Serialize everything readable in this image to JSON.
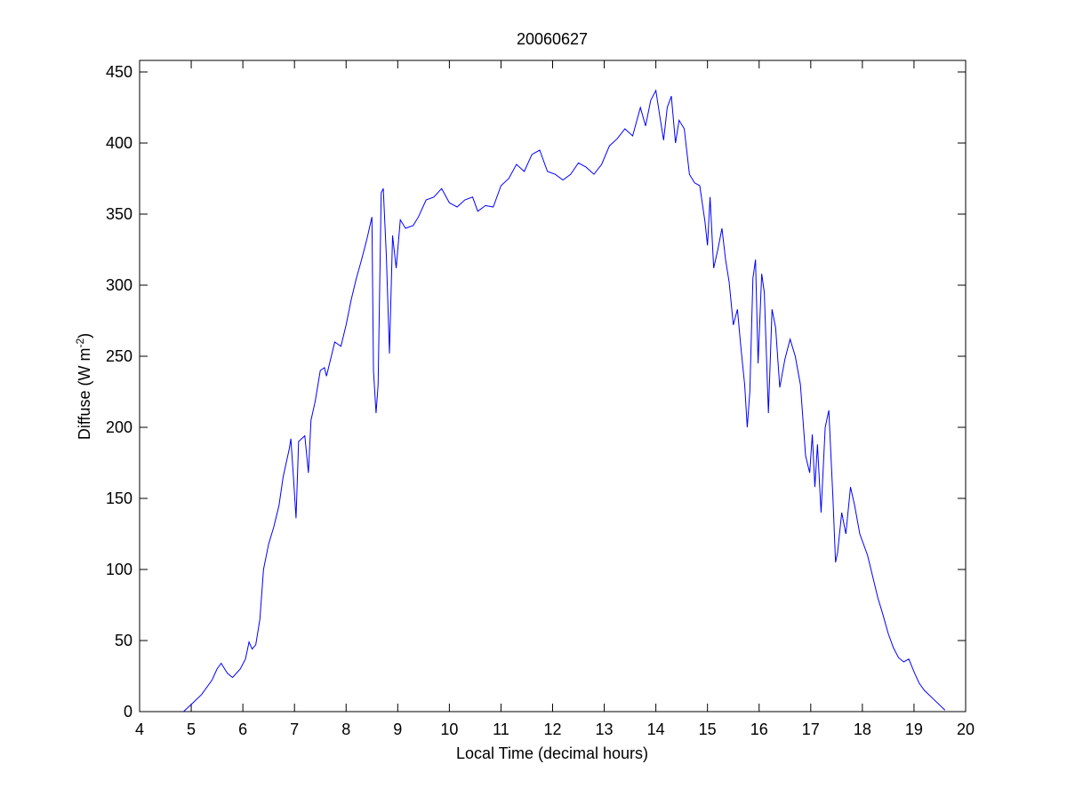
{
  "chart_data": {
    "type": "line",
    "title": "20060627",
    "xlabel": "Local Time (decimal hours)",
    "ylabel": {
      "text": "Diffuse (W m",
      "superscript": "-2",
      "suffix": ")"
    },
    "color": "#0000ff",
    "xlim": [
      4,
      20
    ],
    "xticks": [
      4,
      5,
      6,
      7,
      8,
      9,
      10,
      11,
      12,
      13,
      14,
      15,
      16,
      17,
      18,
      19,
      20
    ],
    "ylim": [
      0,
      450
    ],
    "yticks": [
      0,
      50,
      100,
      150,
      200,
      250,
      300,
      350,
      400,
      450
    ],
    "x": [
      4.85,
      5.0,
      5.2,
      5.4,
      5.5,
      5.58,
      5.7,
      5.8,
      5.95,
      6.05,
      6.12,
      6.18,
      6.25,
      6.33,
      6.4,
      6.5,
      6.6,
      6.7,
      6.78,
      6.9,
      6.93,
      6.98,
      7.03,
      7.08,
      7.2,
      7.27,
      7.32,
      7.4,
      7.5,
      7.58,
      7.62,
      7.7,
      7.78,
      7.9,
      8.0,
      8.1,
      8.2,
      8.3,
      8.4,
      8.5,
      8.53,
      8.58,
      8.62,
      8.68,
      8.72,
      8.78,
      8.84,
      8.9,
      8.97,
      9.05,
      9.15,
      9.3,
      9.4,
      9.55,
      9.7,
      9.85,
      10.0,
      10.15,
      10.3,
      10.45,
      10.55,
      10.7,
      10.85,
      11.0,
      11.15,
      11.3,
      11.45,
      11.6,
      11.75,
      11.9,
      12.05,
      12.2,
      12.35,
      12.5,
      12.65,
      12.8,
      12.95,
      13.1,
      13.25,
      13.4,
      13.55,
      13.7,
      13.8,
      13.9,
      14.0,
      14.08,
      14.15,
      14.22,
      14.3,
      14.38,
      14.45,
      14.55,
      14.65,
      14.75,
      14.85,
      14.95,
      15.0,
      15.05,
      15.12,
      15.2,
      15.28,
      15.35,
      15.42,
      15.5,
      15.58,
      15.65,
      15.72,
      15.77,
      15.82,
      15.88,
      15.93,
      15.98,
      16.05,
      16.1,
      16.18,
      16.25,
      16.32,
      16.4,
      16.5,
      16.6,
      16.7,
      16.8,
      16.9,
      16.98,
      17.03,
      17.08,
      17.13,
      17.2,
      17.28,
      17.35,
      17.43,
      17.48,
      17.52,
      17.6,
      17.68,
      17.77,
      17.85,
      17.95,
      18.1,
      18.2,
      18.3,
      18.4,
      18.5,
      18.6,
      18.7,
      18.8,
      18.9,
      19.0,
      19.1,
      19.2,
      19.4,
      19.6
    ],
    "values": [
      0,
      5,
      12,
      22,
      30,
      34,
      27,
      24,
      30,
      37,
      49,
      44,
      47,
      65,
      100,
      118,
      130,
      145,
      165,
      185,
      192,
      165,
      136,
      190,
      194,
      168,
      205,
      218,
      240,
      242,
      236,
      248,
      260,
      257,
      272,
      290,
      305,
      318,
      332,
      348,
      240,
      210,
      230,
      365,
      368,
      320,
      252,
      335,
      312,
      346,
      340,
      342,
      348,
      360,
      362,
      368,
      358,
      355,
      360,
      362,
      352,
      356,
      355,
      370,
      375,
      385,
      380,
      392,
      395,
      380,
      378,
      374,
      378,
      386,
      383,
      378,
      385,
      398,
      403,
      410,
      405,
      425,
      412,
      430,
      437,
      418,
      402,
      425,
      433,
      400,
      416,
      410,
      378,
      372,
      370,
      345,
      328,
      362,
      312,
      325,
      340,
      318,
      302,
      272,
      283,
      255,
      230,
      200,
      225,
      305,
      318,
      245,
      308,
      295,
      210,
      283,
      270,
      228,
      248,
      262,
      250,
      230,
      180,
      168,
      195,
      158,
      188,
      140,
      200,
      212,
      150,
      105,
      112,
      140,
      125,
      158,
      145,
      125,
      110,
      95,
      80,
      68,
      55,
      45,
      38,
      35,
      37,
      28,
      20,
      15,
      8,
      1
    ]
  }
}
